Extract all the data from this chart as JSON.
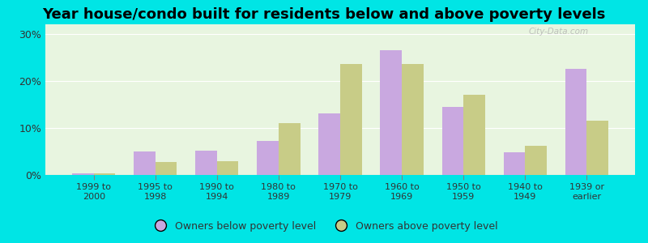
{
  "title": "Year house/condo built for residents below and above poverty levels",
  "categories": [
    "1999 to\n2000",
    "1995 to\n1998",
    "1990 to\n1994",
    "1980 to\n1989",
    "1970 to\n1979",
    "1960 to\n1969",
    "1950 to\n1959",
    "1940 to\n1949",
    "1939 or\nearlier"
  ],
  "below_poverty": [
    0.3,
    5.0,
    5.2,
    7.2,
    13.0,
    26.5,
    14.5,
    4.8,
    22.5
  ],
  "above_poverty": [
    0.4,
    2.8,
    2.9,
    11.0,
    23.5,
    23.5,
    17.0,
    6.2,
    11.5
  ],
  "below_color": "#c9a8e0",
  "above_color": "#c8cc87",
  "background_plot": "#e8f5e0",
  "background_fig": "#00e5e5",
  "ylim": [
    0,
    32
  ],
  "yticks": [
    0,
    10,
    20,
    30
  ],
  "title_fontsize": 13,
  "legend_below_label": "Owners below poverty level",
  "legend_above_label": "Owners above poverty level",
  "watermark": "City-Data.com"
}
